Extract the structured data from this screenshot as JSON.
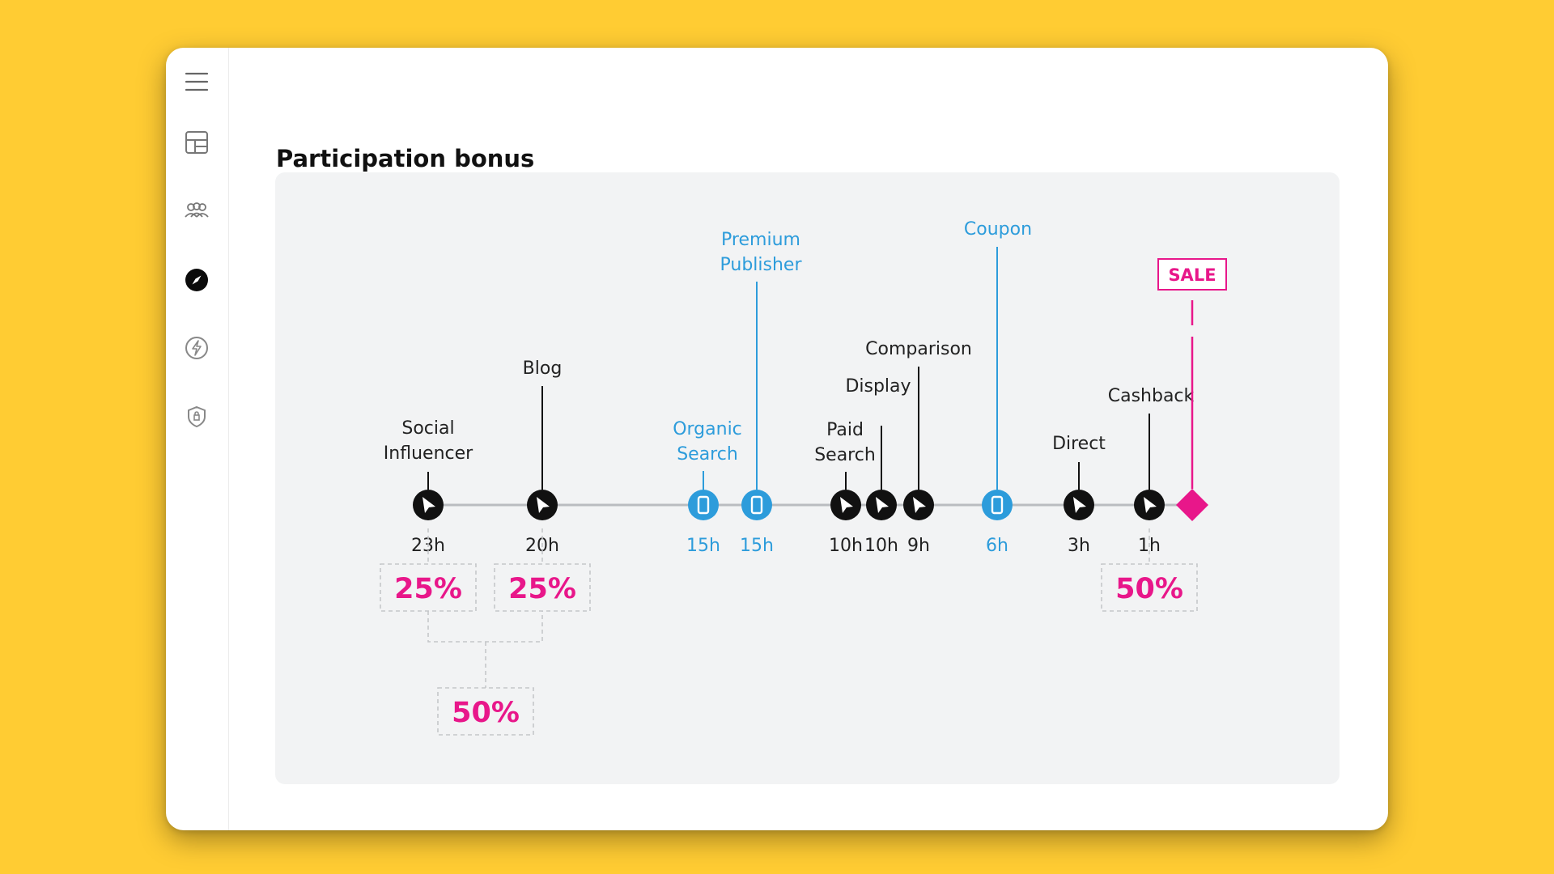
{
  "header": {
    "title": "Participation bonus"
  },
  "sidebar": {
    "items": [
      {
        "icon": "hamburger-menu-icon",
        "active": false
      },
      {
        "icon": "dashboard-icon",
        "active": false
      },
      {
        "icon": "users-group-icon",
        "active": false
      },
      {
        "icon": "compass-icon",
        "active": true
      },
      {
        "icon": "lightning-icon",
        "active": false
      },
      {
        "icon": "shield-icon",
        "active": false
      }
    ]
  },
  "timeline": {
    "colors": {
      "click": "#111111",
      "view": "#2D9CDB",
      "sale": "#E8178A",
      "bonus": "#E8178A",
      "line": "#B9BCC0"
    },
    "touchpoints": [
      {
        "label": "Social Influencer",
        "time": "23h",
        "type": "click"
      },
      {
        "label": "Blog",
        "time": "20h",
        "type": "click"
      },
      {
        "label": "Organic Search",
        "time": "15h",
        "type": "view"
      },
      {
        "label": "Premium Publisher",
        "time": "15h",
        "type": "view"
      },
      {
        "label": "Paid Search",
        "time": "10h",
        "type": "click"
      },
      {
        "label": "Display",
        "time": "10h",
        "type": "click"
      },
      {
        "label": "Comparison",
        "time": "9h",
        "type": "click"
      },
      {
        "label": "Coupon",
        "time": "6h",
        "type": "view"
      },
      {
        "label": "Direct",
        "time": "3h",
        "type": "click"
      },
      {
        "label": "Cashback",
        "time": "1h",
        "type": "click"
      }
    ],
    "sale_label": "SALE",
    "bonuses": [
      {
        "value": "25%"
      },
      {
        "value": "25%"
      },
      {
        "value": "50%"
      },
      {
        "value": "50%"
      }
    ]
  }
}
